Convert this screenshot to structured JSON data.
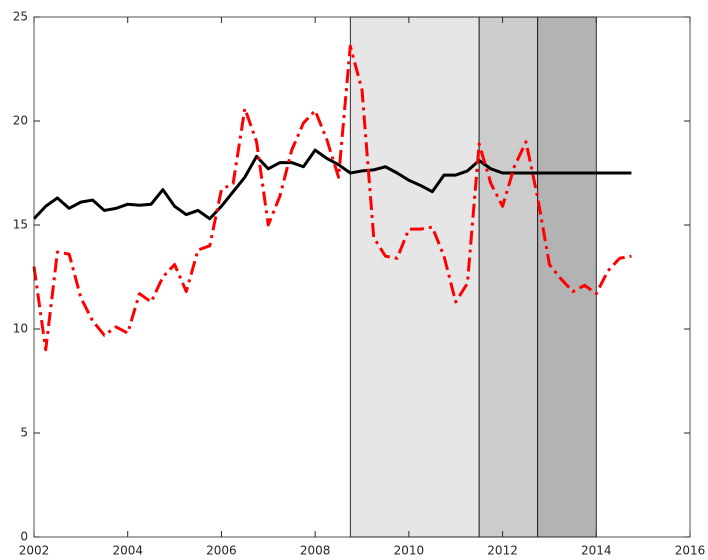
{
  "chart_data": {
    "type": "line",
    "x": [
      2002,
      2002.25,
      2002.5,
      2002.75,
      2003,
      2003.25,
      2003.5,
      2003.75,
      2004,
      2004.25,
      2004.5,
      2004.75,
      2005,
      2005.25,
      2005.5,
      2005.75,
      2006,
      2006.25,
      2006.5,
      2006.75,
      2007,
      2007.25,
      2007.5,
      2007.75,
      2008,
      2008.25,
      2008.5,
      2008.75,
      2009,
      2009.25,
      2009.5,
      2009.75,
      2010,
      2010.25,
      2010.5,
      2010.75,
      2011,
      2011.25,
      2011.5,
      2011.75,
      2012,
      2012.25,
      2012.5,
      2012.75,
      2013,
      2013.25,
      2013.5,
      2013.75,
      2014,
      2014.25,
      2014.5,
      2014.75
    ],
    "series": [
      {
        "color": "#000000",
        "dash": "solid",
        "values": [
          15.3,
          15.9,
          16.3,
          15.8,
          16.1,
          16.2,
          15.7,
          15.8,
          16.0,
          15.95,
          16.0,
          16.7,
          15.9,
          15.5,
          15.7,
          15.3,
          15.9,
          16.6,
          17.3,
          18.3,
          17.7,
          18.0,
          18.0,
          17.8,
          18.6,
          18.2,
          17.9,
          17.5,
          17.6,
          17.65,
          17.8,
          17.5,
          17.15,
          16.9,
          16.6,
          17.4,
          17.4,
          17.6,
          18.1,
          17.7,
          17.5,
          17.5,
          17.5,
          17.5,
          17.5,
          17.5,
          17.5,
          17.5,
          17.5,
          17.5,
          17.5,
          17.5
        ]
      },
      {
        "color": "#ff0000",
        "dash": "dashdot",
        "values": [
          13.0,
          9.0,
          13.7,
          13.6,
          11.5,
          10.4,
          9.7,
          10.1,
          9.8,
          11.7,
          11.3,
          12.5,
          13.1,
          11.8,
          13.8,
          14.0,
          16.7,
          17.0,
          20.6,
          19.0,
          15.0,
          16.4,
          18.6,
          19.9,
          20.5,
          19.1,
          17.3,
          23.6,
          21.5,
          14.4,
          13.5,
          13.4,
          14.8,
          14.8,
          14.9,
          13.5,
          11.3,
          12.2,
          18.9,
          17.0,
          15.9,
          17.8,
          19.0,
          16.3,
          13.1,
          12.4,
          11.8,
          12.1,
          11.7,
          12.8,
          13.4,
          13.5
        ]
      }
    ],
    "shaded_regions": [
      {
        "start": 2008.75,
        "end": 2011.5,
        "color": "#e6e6e6"
      },
      {
        "start": 2011.5,
        "end": 2012.75,
        "color": "#cccccc"
      },
      {
        "start": 2012.75,
        "end": 2014,
        "color": "#b3b3b3"
      }
    ],
    "xlim": [
      2002,
      2016
    ],
    "xticks": [
      2002,
      2004,
      2006,
      2008,
      2010,
      2012,
      2014,
      2016
    ],
    "ylim": [
      0,
      25
    ],
    "yticks": [
      0,
      5,
      10,
      15,
      20,
      25
    ]
  }
}
